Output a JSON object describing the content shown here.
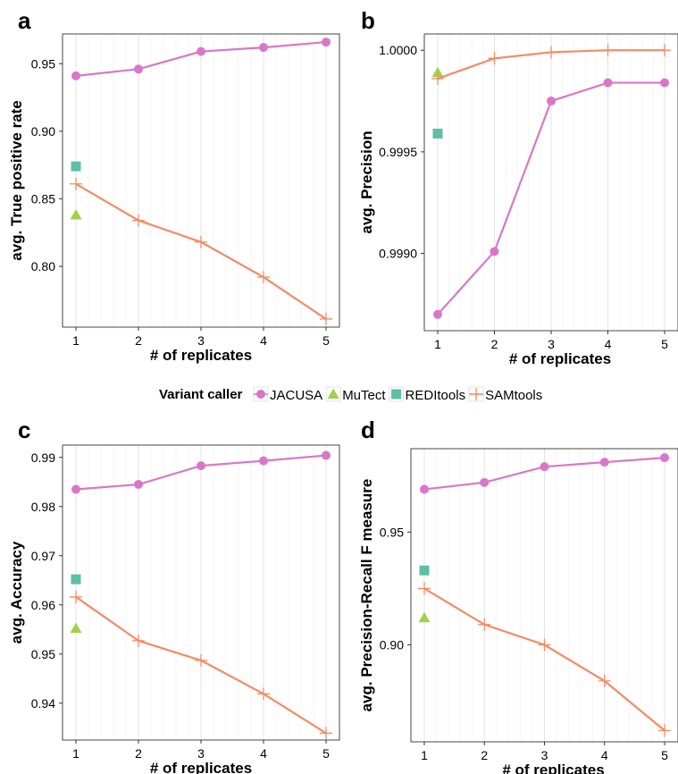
{
  "legend": {
    "title": "Variant caller",
    "entries": [
      {
        "name": "JACUSA",
        "color": "#DA76C9",
        "shape": "circle"
      },
      {
        "name": "MuTect",
        "color": "#A3D04C",
        "shape": "triangle"
      },
      {
        "name": "REDItools",
        "color": "#5CBFA6",
        "shape": "square"
      },
      {
        "name": "SAMtools",
        "color": "#F58A63",
        "shape": "plus"
      }
    ]
  },
  "chart_data": [
    {
      "panel": "a",
      "type": "line",
      "xlabel": "# of replicates",
      "ylabel": "avg. True positive rate",
      "x": [
        1,
        2,
        3,
        4,
        5
      ],
      "xticks": [
        "1",
        "2",
        "3",
        "4",
        "5"
      ],
      "yticks": [
        "0.80",
        "0.85",
        "0.90",
        "0.95"
      ],
      "ylim": [
        0.755,
        0.972
      ],
      "grid": true,
      "series": [
        {
          "name": "JACUSA",
          "x": [
            1,
            2,
            3,
            4,
            5
          ],
          "values": [
            0.941,
            0.946,
            0.959,
            0.962,
            0.966
          ]
        },
        {
          "name": "MuTect",
          "x": [
            1
          ],
          "values": [
            0.838
          ]
        },
        {
          "name": "REDItools",
          "x": [
            1
          ],
          "values": [
            0.874
          ]
        },
        {
          "name": "SAMtools",
          "x": [
            1,
            2,
            3,
            4,
            5
          ],
          "values": [
            0.861,
            0.834,
            0.818,
            0.792,
            0.761
          ]
        }
      ]
    },
    {
      "panel": "b",
      "type": "line",
      "xlabel": "# of replicates",
      "ylabel": "avg. Precision",
      "x": [
        1,
        2,
        3,
        4,
        5
      ],
      "xticks": [
        "1",
        "2",
        "3",
        "4",
        "5"
      ],
      "yticks": [
        "0.9990",
        "0.9995",
        "1.0000"
      ],
      "ylim": [
        0.99862,
        1.00008
      ],
      "grid": true,
      "series": [
        {
          "name": "JACUSA",
          "x": [
            1,
            2,
            3,
            4,
            5
          ],
          "values": [
            0.9987,
            0.99901,
            0.99975,
            0.99984,
            0.99984
          ]
        },
        {
          "name": "MuTect",
          "x": [
            1
          ],
          "values": [
            0.99989
          ]
        },
        {
          "name": "REDItools",
          "x": [
            1
          ],
          "values": [
            0.99959
          ]
        },
        {
          "name": "SAMtools",
          "x": [
            1,
            2,
            3,
            4,
            5
          ],
          "values": [
            0.99986,
            0.99996,
            0.99999,
            1.0,
            1.0
          ]
        }
      ]
    },
    {
      "panel": "c",
      "type": "line",
      "xlabel": "# of replicates",
      "ylabel": "avg. Accuracy",
      "x": [
        1,
        2,
        3,
        4,
        5
      ],
      "xticks": [
        "1",
        "2",
        "3",
        "4",
        "5"
      ],
      "yticks": [
        "0.94",
        "0.95",
        "0.96",
        "0.97",
        "0.98",
        "0.99"
      ],
      "ylim": [
        0.9325,
        0.9925
      ],
      "grid": true,
      "series": [
        {
          "name": "JACUSA",
          "x": [
            1,
            2,
            3,
            4,
            5
          ],
          "values": [
            0.9835,
            0.9845,
            0.9883,
            0.9893,
            0.9904
          ]
        },
        {
          "name": "MuTect",
          "x": [
            1
          ],
          "values": [
            0.9552
          ]
        },
        {
          "name": "REDItools",
          "x": [
            1
          ],
          "values": [
            0.9652
          ]
        },
        {
          "name": "SAMtools",
          "x": [
            1,
            2,
            3,
            4,
            5
          ],
          "values": [
            0.9616,
            0.9527,
            0.9487,
            0.9419,
            0.9339
          ]
        }
      ]
    },
    {
      "panel": "d",
      "type": "line",
      "xlabel": "# of replicates",
      "ylabel": "avg. Precision-Recall F measure",
      "x": [
        1,
        2,
        3,
        4,
        5
      ],
      "xticks": [
        "1",
        "2",
        "3",
        "4",
        "5"
      ],
      "yticks": [
        "0.90",
        "0.95"
      ],
      "ylim": [
        0.857,
        0.987
      ],
      "grid": true,
      "series": [
        {
          "name": "JACUSA",
          "x": [
            1,
            2,
            3,
            4,
            5
          ],
          "values": [
            0.969,
            0.972,
            0.979,
            0.981,
            0.983
          ]
        },
        {
          "name": "MuTect",
          "x": [
            1
          ],
          "values": [
            0.912
          ]
        },
        {
          "name": "REDItools",
          "x": [
            1
          ],
          "values": [
            0.933
          ]
        },
        {
          "name": "SAMtools",
          "x": [
            1,
            2,
            3,
            4,
            5
          ],
          "values": [
            0.925,
            0.909,
            0.9,
            0.884,
            0.862
          ]
        }
      ]
    }
  ]
}
